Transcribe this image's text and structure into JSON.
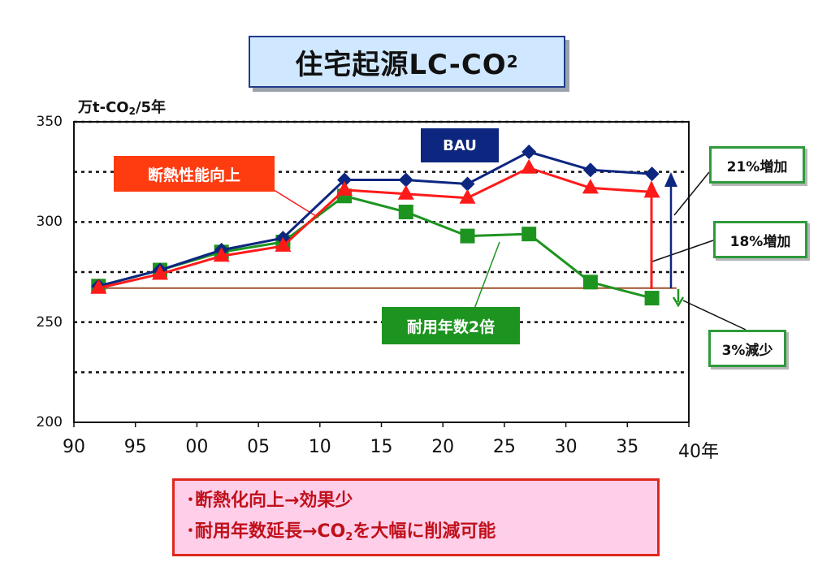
{
  "title": {
    "main": "住宅起源LC-CO",
    "sub": "2"
  },
  "unit": {
    "pre": "万t-CO",
    "sub": "2",
    "post": "/5年"
  },
  "chart_data": {
    "type": "line",
    "xlabel": "年",
    "x_tick_labels": [
      "90",
      "95",
      "00",
      "05",
      "10",
      "15",
      "20",
      "25",
      "30",
      "35",
      "40年"
    ],
    "x_range": [
      1990,
      2040
    ],
    "ylim": [
      200,
      350
    ],
    "y_ticks": [
      200,
      250,
      300,
      350
    ],
    "gridlines": [
      225,
      250,
      275,
      300,
      325,
      350
    ],
    "series": [
      {
        "name": "BAU",
        "color": "#0d2680",
        "marker": "diamond",
        "x": [
          1992,
          1997,
          2002,
          2007,
          2012,
          2017,
          2022,
          2027,
          2032,
          2037
        ],
        "values": [
          268,
          276,
          286,
          292,
          321,
          321,
          319,
          335,
          326,
          324
        ]
      },
      {
        "name": "断熱性能向上",
        "color": "#ff1a1a",
        "marker": "triangle",
        "x": [
          1992,
          1997,
          2002,
          2007,
          2012,
          2017,
          2022,
          2027,
          2032,
          2037
        ],
        "values": [
          267,
          274,
          283,
          288,
          316,
          314,
          312,
          327,
          317,
          315
        ]
      },
      {
        "name": "耐用年数2倍",
        "color": "#1e9420",
        "marker": "square",
        "x": [
          1992,
          1997,
          2002,
          2007,
          2012,
          2017,
          2022,
          2027,
          2032,
          2037
        ],
        "values": [
          268,
          276,
          285,
          290,
          313,
          305,
          293,
          294,
          270,
          262
        ]
      }
    ],
    "baseline": {
      "value": 267,
      "color": "#a0522d"
    },
    "annotations": [
      "21%増加",
      "18%増加",
      "3%減少"
    ]
  },
  "labels": {
    "bau": "BAU",
    "insulation": "断熱性能向上",
    "durability": "耐用年数2倍"
  },
  "callouts": {
    "c21": "21%増加",
    "c18": "18%増加",
    "c3": "3%減少"
  },
  "summary": {
    "line1": "･断熱化向上→効果少",
    "line2_a": "･耐用年数延長→CO",
    "line2_sub": "2",
    "line2_b": "を大幅に削減可能"
  }
}
